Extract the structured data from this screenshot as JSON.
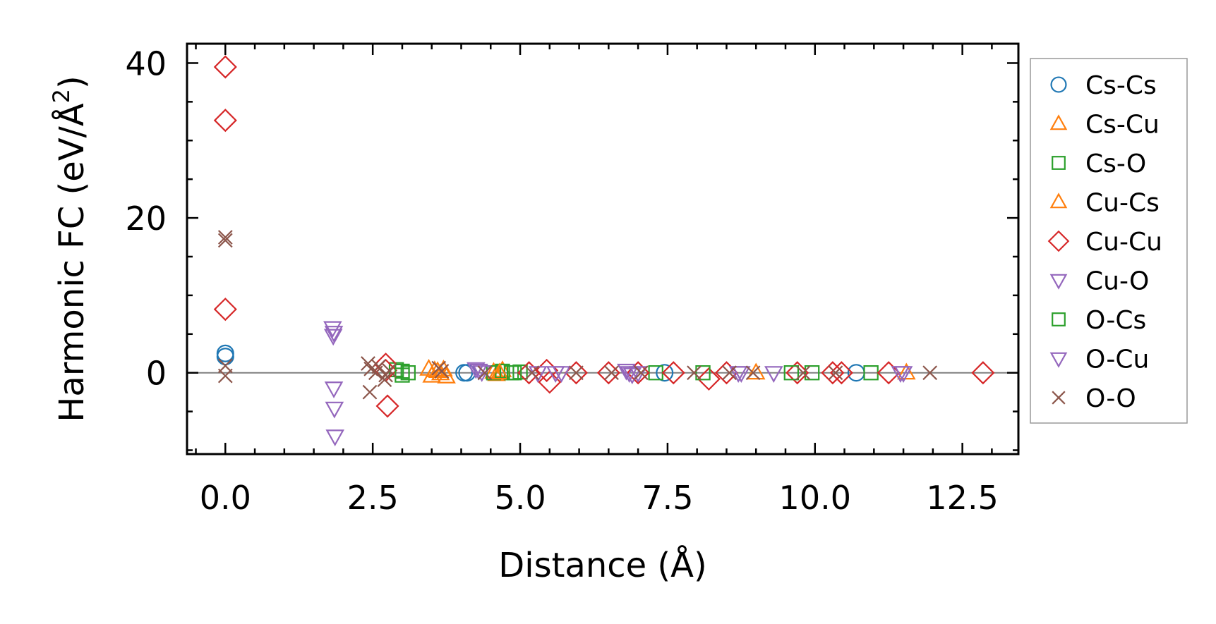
{
  "chart_data": {
    "type": "scatter",
    "title": "",
    "xlabel": "Distance (Å)",
    "ylabel_main": "Harmonic FC (eV/Å",
    "ylabel_sup": "2",
    "ylabel_close": ")",
    "xlim": [
      -0.65,
      13.45
    ],
    "ylim": [
      -10.5,
      42.5
    ],
    "xticks": [
      0.0,
      2.5,
      5.0,
      7.5,
      10.0,
      12.5
    ],
    "xtick_labels": [
      "0.0",
      "2.5",
      "5.0",
      "7.5",
      "10.0",
      "12.5"
    ],
    "yticks": [
      0,
      20,
      40
    ],
    "ytick_labels": [
      "0",
      "20",
      "40"
    ],
    "zero_line": true,
    "legend_position": "right-outside",
    "series": [
      {
        "name": "Cs-Cs",
        "marker": "circle",
        "color": "#1f77b4",
        "x": [
          0.0,
          0.0,
          4.05,
          4.1,
          7.45,
          10.7
        ],
        "y": [
          2.5,
          2.1,
          0.0,
          0.0,
          0.0,
          0.0
        ]
      },
      {
        "name": "Cs-Cu",
        "marker": "triangle-up",
        "color": "#ff7f0e",
        "x": [
          3.45,
          3.5,
          3.6,
          3.7,
          3.75,
          4.55,
          4.6,
          4.7,
          9.0,
          11.55
        ],
        "y": [
          0.5,
          -0.4,
          0.2,
          0.4,
          -0.5,
          0.1,
          -0.2,
          0.3,
          0.0,
          0.0
        ]
      },
      {
        "name": "Cs-O",
        "marker": "square",
        "color": "#2ca02c",
        "x": [
          2.9,
          3.0,
          3.1,
          4.55,
          4.7,
          4.85,
          5.0,
          7.3,
          9.95,
          10.95
        ],
        "y": [
          0.4,
          -0.3,
          0.0,
          0.0,
          0.2,
          0.0,
          0.1,
          0.0,
          0.0,
          0.0
        ]
      },
      {
        "name": "Cu-Cs",
        "marker": "triangle-up",
        "color": "#ff7f0e",
        "x": [
          3.55,
          3.65,
          4.65
        ],
        "y": [
          0.3,
          -0.1,
          0.0
        ]
      },
      {
        "name": "Cu-Cu",
        "marker": "diamond",
        "color": "#d62728",
        "x": [
          0.0,
          0.0,
          0.0,
          2.72,
          2.72,
          2.75,
          5.15,
          5.45,
          5.5,
          5.95,
          6.5,
          7.0,
          7.6,
          8.2,
          8.5,
          9.7,
          10.3,
          10.45,
          11.25,
          12.85
        ],
        "y": [
          39.5,
          32.6,
          8.2,
          1.1,
          0.3,
          -4.3,
          0.0,
          0.3,
          -1.2,
          0.0,
          0.0,
          0.0,
          0.0,
          -0.8,
          0.0,
          0.0,
          0.0,
          0.0,
          0.0,
          0.0
        ]
      },
      {
        "name": "Cu-O",
        "marker": "triangle-down",
        "color": "#9467bd",
        "x": [
          1.82,
          1.83,
          1.84,
          1.85,
          1.86,
          4.25,
          4.35,
          5.3,
          5.7,
          6.8,
          6.9,
          7.0,
          8.7,
          9.3,
          11.45
        ],
        "y": [
          5.8,
          4.8,
          -2.0,
          -4.6,
          -8.2,
          0.5,
          0.1,
          0.0,
          0.0,
          0.3,
          -0.2,
          0.0,
          0.0,
          0.0,
          0.0
        ]
      },
      {
        "name": "O-Cs",
        "marker": "square",
        "color": "#2ca02c",
        "x": [
          3.0,
          4.9,
          8.1,
          9.6
        ],
        "y": [
          0.2,
          0.0,
          0.0,
          0.0
        ]
      },
      {
        "name": "O-Cu",
        "marker": "triangle-down",
        "color": "#9467bd",
        "x": [
          1.84,
          4.3,
          5.6,
          6.85,
          8.75,
          11.5
        ],
        "y": [
          5.2,
          0.3,
          0.0,
          0.0,
          0.0,
          0.0
        ]
      },
      {
        "name": "O-O",
        "marker": "x",
        "color": "#8c564b",
        "x": [
          0.0,
          0.0,
          0.0,
          0.0,
          2.42,
          2.45,
          2.47,
          2.55,
          2.6,
          2.7,
          2.72,
          2.78,
          3.62,
          3.67,
          4.4,
          5.2,
          5.95,
          6.55,
          7.05,
          7.95,
          8.55,
          8.95,
          9.8,
          10.35,
          11.95
        ],
        "y": [
          17.5,
          17.1,
          0.9,
          -0.4,
          1.2,
          -2.5,
          0.5,
          0.0,
          0.8,
          -0.9,
          -0.3,
          0.3,
          0.6,
          0.2,
          0.0,
          0.0,
          0.0,
          0.0,
          0.0,
          0.0,
          0.0,
          0.0,
          0.0,
          0.0,
          0.0
        ]
      }
    ]
  }
}
